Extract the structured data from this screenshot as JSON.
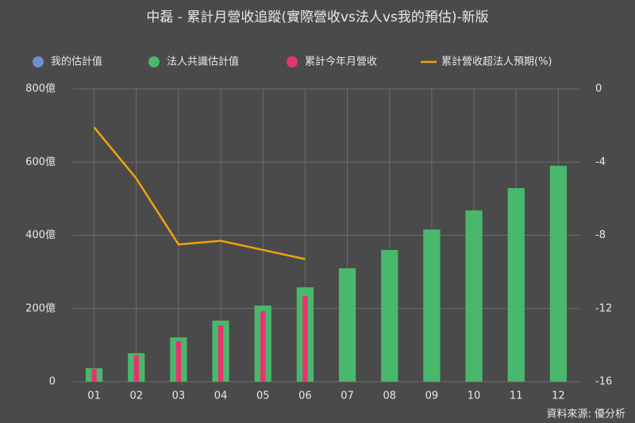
{
  "chart_data": {
    "type": "bar_line",
    "title": "中磊 - 累計月營收追蹤(實際營收vs法人vs我的預估)-新版",
    "source": "資料來源: 優分析",
    "categories": [
      "01",
      "02",
      "03",
      "04",
      "05",
      "06",
      "07",
      "08",
      "09",
      "10",
      "11",
      "12"
    ],
    "series": [
      {
        "name": "我的估計值",
        "color": "#6f8fd0",
        "kind": "bar",
        "values": [
          null,
          null,
          null,
          null,
          null,
          null,
          null,
          null,
          null,
          null,
          null,
          null
        ]
      },
      {
        "name": "法人共識估計值",
        "color": "#48b86c",
        "kind": "bar",
        "values": [
          37,
          78,
          121,
          167,
          208,
          258,
          310,
          360,
          416,
          468,
          529,
          590
        ]
      },
      {
        "name": "累計今年月營收",
        "color": "#e8336f",
        "kind": "bar",
        "values": [
          35,
          72,
          111,
          154,
          193,
          234,
          null,
          null,
          null,
          null,
          null,
          null
        ]
      },
      {
        "name": "累計營收超法人預期(%)",
        "color": "#f0a30a",
        "kind": "line",
        "axis": "y2",
        "values": [
          -2.1,
          -4.9,
          -8.5,
          -8.3,
          -8.8,
          -9.3,
          null,
          null,
          null,
          null,
          null,
          null
        ]
      }
    ],
    "ylim": [
      0,
      800
    ],
    "yticks": [
      0,
      {
        "value": 200,
        "label": "200億"
      },
      {
        "value": 400,
        "label": "400億"
      },
      {
        "value": 600,
        "label": "600億"
      },
      {
        "value": 800,
        "label": "800億"
      }
    ],
    "y2lim": [
      -16,
      0
    ],
    "y2ticks": [
      -16,
      -12,
      -8,
      -4,
      0
    ],
    "grid": true
  }
}
